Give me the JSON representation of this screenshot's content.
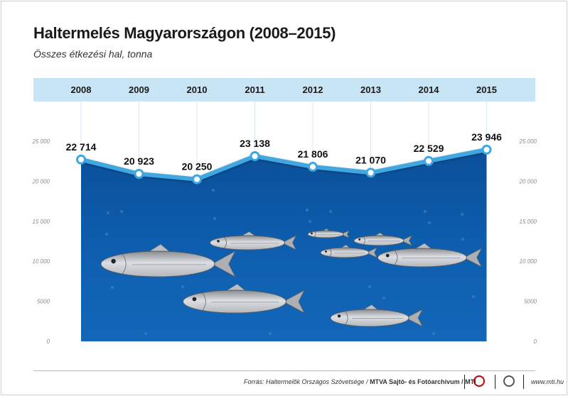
{
  "header": {
    "title": "Haltermelés Magyarországon (2008–2015)",
    "subtitle": "Összes étkezési hal, tonna"
  },
  "chart_data": {
    "type": "area",
    "title": "Haltermelés Magyarországon (2008–2015)",
    "subtitle": "Összes étkezési hal, tonna",
    "categories": [
      "2008",
      "2009",
      "2010",
      "2011",
      "2012",
      "2013",
      "2014",
      "2015"
    ],
    "values": [
      22714,
      20923,
      20250,
      23138,
      21806,
      21070,
      22529,
      23946
    ],
    "data_labels": [
      "22 714",
      "20 923",
      "20 250",
      "23 138",
      "21 806",
      "21 070",
      "22 529",
      "23 946"
    ],
    "yticks": [
      "0",
      "5000",
      "10 000",
      "15 000",
      "20 000",
      "25 000"
    ],
    "ylim": [
      0,
      25000
    ],
    "xlabel": "",
    "ylabel": "",
    "grid": false,
    "colors": {
      "area": "#0d5aa7",
      "line": "#3fa7e0",
      "band": "#c8e5f5"
    }
  },
  "footer": {
    "source_prefix": "Forrás: Haltermelők Országos Szövetsége / ",
    "source_bold": "MTVA Sajtó- és Fotóarchívum / MTI",
    "website": "www.mti.hu"
  }
}
